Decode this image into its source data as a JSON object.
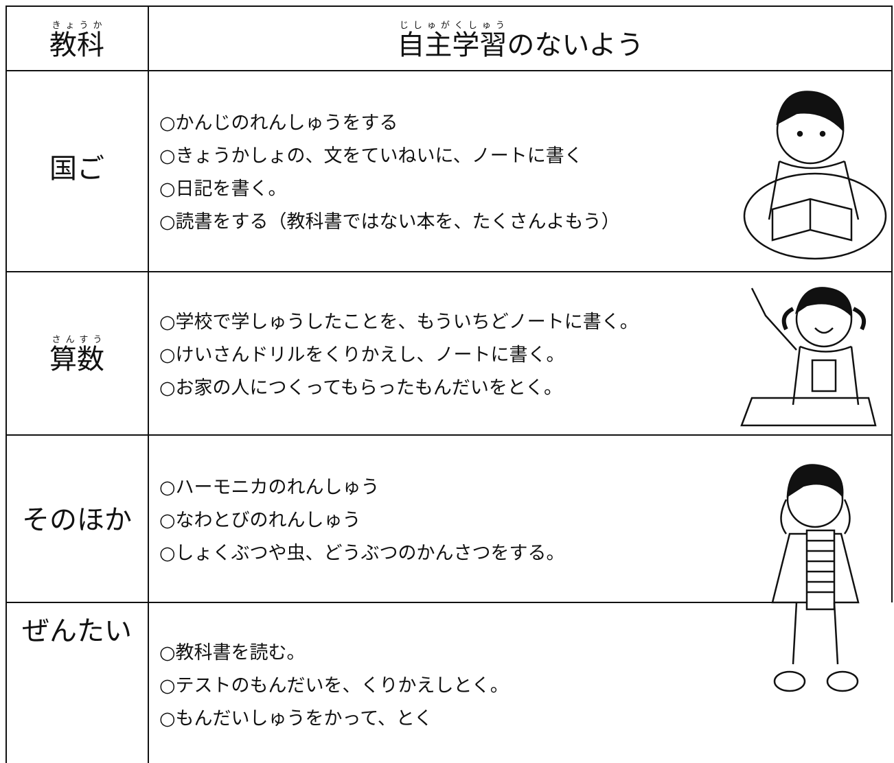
{
  "header": {
    "subject": {
      "text": "教科",
      "ruby": "きょうか"
    },
    "content": {
      "base": "自主学習",
      "ruby": "じしゅがくしゅう",
      "suffix": "のないよう"
    }
  },
  "rows": [
    {
      "subject": {
        "text": "国ご"
      },
      "items": [
        "○かんじのれんしゅうをする",
        "○きょうかしょの、文をていねいに、ノートに書く",
        "○日記を書く。",
        "○読書をする（教科書ではない本を、たくさんよもう）"
      ]
    },
    {
      "subject": {
        "text": "算数",
        "ruby": "さんすう"
      },
      "items": [
        "○学校で学しゅうしたことを、もういちどノートに書く。",
        "○けいさんドリルをくりかえし、ノートに書く。",
        "○お家の人につくってもらったもんだいをとく。"
      ]
    },
    {
      "subject": {
        "text": "そのほか"
      },
      "items": [
        "○ハーモニカのれんしゅう",
        "○なわとびのれんしゅう",
        "○しょくぶつや虫、どうぶつのかんさつをする。"
      ]
    },
    {
      "subject": {
        "text": "ぜんたい"
      },
      "items": [
        "○教科書を読む。",
        "○テストのもんだいを、くりかえしとく。",
        "○もんだいしゅうをかって、とく"
      ]
    }
  ]
}
